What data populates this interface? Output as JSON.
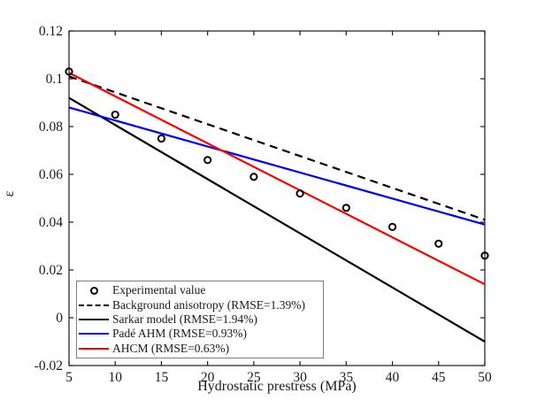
{
  "figure": {
    "background": "#ffffff",
    "axes_box_color": "#1a1a1a"
  },
  "axes": {
    "xlabel": "Hydrostatic prestress (MPa)",
    "ylabel": "ε",
    "xtick_labels": [
      "5",
      "10",
      "15",
      "20",
      "25",
      "30",
      "35",
      "40",
      "45",
      "50"
    ],
    "ytick_labels": [
      "-0.02",
      "0",
      "0.02",
      "0.04",
      "0.06",
      "0.08",
      "0.1",
      "0.12"
    ]
  },
  "legend": {
    "entries": [
      {
        "label": "Experimental value",
        "swatch": "marker",
        "color": "#000000"
      },
      {
        "label": "Background anisotropy (RMSE=1.39%)",
        "swatch": "dashed",
        "color": "#000000"
      },
      {
        "label": "Sarkar model (RMSE=1.94%)",
        "swatch": "solid",
        "color": "#000000"
      },
      {
        "label": "Padé AHM (RMSE=0.93%)",
        "swatch": "solid",
        "color": "#0000ff"
      },
      {
        "label": "AHCM (RMSE=0.63%)",
        "swatch": "solid",
        "color": "#ff0000"
      }
    ]
  },
  "chart_data": {
    "type": "line",
    "title": "",
    "xlabel": "Hydrostatic prestress (MPa)",
    "ylabel": "ε",
    "xlim": [
      5,
      50
    ],
    "ylim": [
      -0.02,
      0.12
    ],
    "xticks": [
      5,
      10,
      15,
      20,
      25,
      30,
      35,
      40,
      45,
      50
    ],
    "yticks": [
      -0.02,
      0,
      0.02,
      0.04,
      0.06,
      0.08,
      0.1,
      0.12
    ],
    "grid": false,
    "legend_position": "lower-left",
    "series": [
      {
        "name": "Experimental value",
        "type": "scatter",
        "marker": "open-circle",
        "color": "#000000",
        "x": [
          5,
          10,
          15,
          20,
          25,
          30,
          35,
          40,
          45,
          50
        ],
        "y": [
          0.103,
          0.085,
          0.075,
          0.066,
          0.059,
          0.052,
          0.046,
          0.038,
          0.031,
          0.026
        ]
      },
      {
        "name": "Background anisotropy (RMSE=1.39%)",
        "type": "line",
        "style": "dashed",
        "color": "#000000",
        "x": [
          5,
          50
        ],
        "y": [
          0.101,
          0.041
        ]
      },
      {
        "name": "Sarkar model (RMSE=1.94%)",
        "type": "line",
        "style": "solid",
        "color": "#000000",
        "x": [
          5,
          50
        ],
        "y": [
          0.092,
          -0.01
        ]
      },
      {
        "name": "Padé AHM (RMSE=0.93%)",
        "type": "line",
        "style": "solid",
        "color": "#0000ff",
        "x": [
          5,
          50
        ],
        "y": [
          0.088,
          0.039
        ]
      },
      {
        "name": "AHCM (RMSE=0.63%)",
        "type": "line",
        "style": "solid",
        "color": "#ff0000",
        "x": [
          5,
          50
        ],
        "y": [
          0.1025,
          0.014
        ]
      }
    ]
  }
}
